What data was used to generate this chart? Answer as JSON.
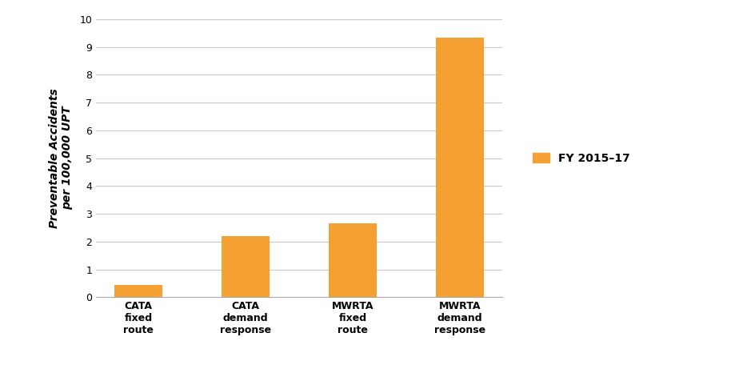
{
  "categories": [
    "CATA\nfixed\nroute",
    "CATA\ndemand\nresponse",
    "MWRTA\nfixed\nroute",
    "MWRTA\ndemand\nresponse"
  ],
  "values": [
    0.45,
    2.2,
    2.65,
    9.32
  ],
  "bar_color": "#F5A033",
  "ylabel": "Preventable Accidents\nper 100,000 UPT",
  "ylim": [
    0,
    10
  ],
  "yticks": [
    0,
    1,
    2,
    3,
    4,
    5,
    6,
    7,
    8,
    9,
    10
  ],
  "legend_label": "FY 2015–17",
  "legend_color": "#F5A033",
  "background_color": "#ffffff",
  "bar_width": 0.45,
  "grid_color": "#c8c8c8",
  "ylabel_fontsize": 10,
  "tick_fontsize": 9,
  "legend_fontsize": 10
}
